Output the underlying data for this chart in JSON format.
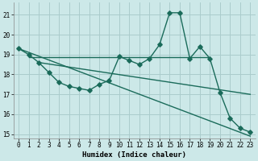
{
  "xlabel": "Humidex (Indice chaleur)",
  "bg_color": "#cce8e8",
  "grid_color": "#aacccc",
  "line_color": "#1a6b5a",
  "xlim": [
    -0.5,
    23.5
  ],
  "ylim": [
    14.8,
    21.6
  ],
  "yticks": [
    15,
    16,
    17,
    18,
    19,
    20,
    21
  ],
  "xticks": [
    0,
    1,
    2,
    3,
    4,
    5,
    6,
    7,
    8,
    9,
    10,
    11,
    12,
    13,
    14,
    15,
    16,
    17,
    18,
    19,
    20,
    21,
    22,
    23
  ],
  "series1_x": [
    0,
    1,
    2,
    3,
    4,
    5,
    6,
    7,
    8,
    9,
    10,
    11,
    12,
    13,
    14,
    15,
    16,
    17,
    18,
    19,
    20,
    21,
    22,
    23
  ],
  "series1_y": [
    19.3,
    19.0,
    18.6,
    18.1,
    17.6,
    17.4,
    17.3,
    17.2,
    17.5,
    17.7,
    18.9,
    18.7,
    18.5,
    18.8,
    19.5,
    21.1,
    21.1,
    18.8,
    19.4,
    18.8,
    17.1,
    15.8,
    15.3,
    15.1
  ],
  "series2_x": [
    0,
    23
  ],
  "series2_y": [
    19.3,
    14.9
  ],
  "series3_x": [
    1,
    19
  ],
  "series3_y": [
    18.85,
    18.85
  ],
  "series4_x": [
    2,
    23
  ],
  "series4_y": [
    18.6,
    17.0
  ]
}
